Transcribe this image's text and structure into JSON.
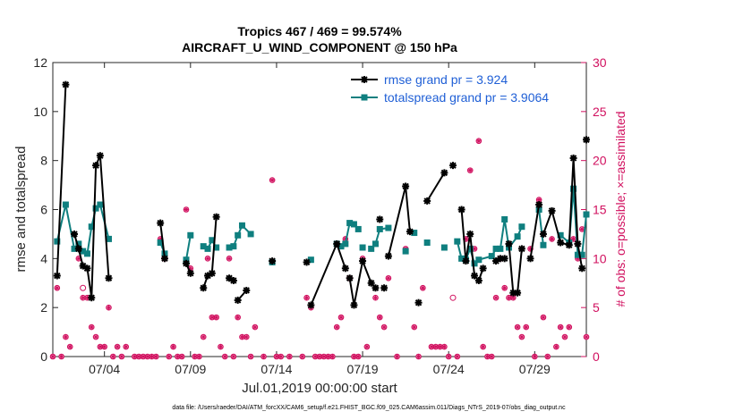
{
  "chart_data": {
    "type": "line",
    "title": "Tropics 467 / 469 = 99.574%",
    "subtitle": "AIRCRAFT_U_WIND_COMPONENT @ 150 hPa",
    "xlabel": "Jul.01,2019 00:00:00 start",
    "ylabel": "rmse and totalspread",
    "y2label": "# of obs: o=possible; ×=assimilated",
    "footer": "data file: /Users/raeder/DAI/ATM_forcXX/CAM6_setup/f.e21.FHIST_BGC.f09_025.CAM6assim.011/Diags_NTrS_2019-07/obs_diag_output.nc",
    "xlim": [
      0,
      31
    ],
    "ylim": [
      0,
      12
    ],
    "y2lim": [
      0,
      30
    ],
    "xticks": [
      3,
      8,
      13,
      18,
      23,
      28
    ],
    "xtick_labels": [
      "07/04",
      "07/09",
      "07/14",
      "07/19",
      "07/24",
      "07/29"
    ],
    "yticks": [
      0,
      2,
      4,
      6,
      8,
      10,
      12
    ],
    "ytick_labels": [
      "0",
      "2",
      "4",
      "6",
      "8",
      "10",
      "12"
    ],
    "y2ticks": [
      0,
      5,
      10,
      15,
      20,
      25,
      30
    ],
    "y2tick_labels": [
      "0",
      "5",
      "10",
      "15",
      "20",
      "25",
      "30"
    ],
    "legend_position": "top-right",
    "colors": {
      "rmse": "#000000",
      "spread": "#0f7f7f",
      "obs": "#d1105f",
      "legend_text": "#1f5fd6"
    },
    "series": [
      {
        "name": "rmse",
        "legend": "rmse grand pr = 3.924",
        "points": [
          [
            0.25,
            3.3
          ],
          [
            0.75,
            11.1
          ],
          [
            1.25,
            5.0
          ],
          [
            1.5,
            4.4
          ],
          [
            1.75,
            3.7
          ],
          [
            2.0,
            3.6
          ],
          [
            2.25,
            2.4
          ],
          [
            2.5,
            7.8
          ],
          [
            2.75,
            8.2
          ],
          [
            3.25,
            3.2
          ],
          [
            6.25,
            5.45
          ],
          [
            6.5,
            4.0
          ],
          [
            7.75,
            3.8
          ],
          [
            8.0,
            3.4
          ],
          [
            8.75,
            2.8
          ],
          [
            9.0,
            3.3
          ],
          [
            9.25,
            3.4
          ],
          [
            9.5,
            5.7
          ],
          [
            10.25,
            3.2
          ],
          [
            10.5,
            3.1
          ],
          [
            10.75,
            2.3
          ],
          [
            11.25,
            2.7
          ],
          [
            12.75,
            3.9
          ],
          [
            14.75,
            3.85
          ],
          [
            15.0,
            2.1
          ],
          [
            16.5,
            4.6
          ],
          [
            17.0,
            3.6
          ],
          [
            17.25,
            3.2
          ],
          [
            17.5,
            2.1
          ],
          [
            18.0,
            3.9
          ],
          [
            18.5,
            3.0
          ],
          [
            18.75,
            2.8
          ],
          [
            19.0,
            5.6
          ],
          [
            19.25,
            2.8
          ],
          [
            19.5,
            4.1
          ],
          [
            20.5,
            6.95
          ],
          [
            20.75,
            5.1
          ],
          [
            21.25,
            2.2
          ],
          [
            21.75,
            6.35
          ],
          [
            22.75,
            7.5
          ],
          [
            23.25,
            7.8
          ],
          [
            23.75,
            6.0
          ],
          [
            24.0,
            3.9
          ],
          [
            24.25,
            5.0
          ],
          [
            24.5,
            3.3
          ],
          [
            24.75,
            3.1
          ],
          [
            25.0,
            3.6
          ],
          [
            25.75,
            3.9
          ],
          [
            26.0,
            4.0
          ],
          [
            26.25,
            4.0
          ],
          [
            26.5,
            4.6
          ],
          [
            26.75,
            2.6
          ],
          [
            27.0,
            2.6
          ],
          [
            27.25,
            4.4
          ],
          [
            27.75,
            4.0
          ],
          [
            28.25,
            6.2
          ],
          [
            28.5,
            5.0
          ],
          [
            29.0,
            5.95
          ],
          [
            29.5,
            4.65
          ],
          [
            30.0,
            4.55
          ],
          [
            30.25,
            8.1
          ],
          [
            30.5,
            4.6
          ],
          [
            30.75,
            3.6
          ],
          [
            31.0,
            8.85
          ]
        ],
        "segments": [
          [
            0,
            1
          ],
          [
            2,
            9
          ],
          [
            10,
            11
          ],
          [
            12,
            13
          ],
          [
            14,
            17
          ],
          [
            18,
            19
          ],
          [
            20,
            21
          ],
          [
            24,
            26
          ],
          [
            27,
            31
          ],
          [
            34,
            36
          ],
          [
            38,
            39
          ],
          [
            41,
            46
          ],
          [
            50,
            53
          ],
          [
            54,
            55
          ],
          [
            56,
            62
          ]
        ]
      },
      {
        "name": "totalspread",
        "legend": "totalspread grand pr = 3.9064",
        "points": [
          [
            0.25,
            4.7
          ],
          [
            0.75,
            6.2
          ],
          [
            1.25,
            4.4
          ],
          [
            1.5,
            4.6
          ],
          [
            1.75,
            4.3
          ],
          [
            2.0,
            4.2
          ],
          [
            2.25,
            5.3
          ],
          [
            2.5,
            6.05
          ],
          [
            2.75,
            6.2
          ],
          [
            3.25,
            4.8
          ],
          [
            6.25,
            4.65
          ],
          [
            6.5,
            4.2
          ],
          [
            7.75,
            3.95
          ],
          [
            8.0,
            4.95
          ],
          [
            8.75,
            4.5
          ],
          [
            9.0,
            4.4
          ],
          [
            9.25,
            4.75
          ],
          [
            9.5,
            4.45
          ],
          [
            10.25,
            4.45
          ],
          [
            10.5,
            4.5
          ],
          [
            10.75,
            4.95
          ],
          [
            11.0,
            5.35
          ],
          [
            11.5,
            5.0
          ],
          [
            12.75,
            3.85
          ],
          [
            15.0,
            3.95
          ],
          [
            16.5,
            4.6
          ],
          [
            16.75,
            4.5
          ],
          [
            17.0,
            4.6
          ],
          [
            17.25,
            5.45
          ],
          [
            17.5,
            5.4
          ],
          [
            17.75,
            5.2
          ],
          [
            18.0,
            4.45
          ],
          [
            18.5,
            4.4
          ],
          [
            18.75,
            4.6
          ],
          [
            19.0,
            5.2
          ],
          [
            19.5,
            5.25
          ],
          [
            20.5,
            4.3
          ],
          [
            21.0,
            5.05
          ],
          [
            21.75,
            4.65
          ],
          [
            22.75,
            4.45
          ],
          [
            23.5,
            4.7
          ],
          [
            23.75,
            4.0
          ],
          [
            24.0,
            3.95
          ],
          [
            24.25,
            4.4
          ],
          [
            24.5,
            3.8
          ],
          [
            24.75,
            3.95
          ],
          [
            25.5,
            4.1
          ],
          [
            25.75,
            4.4
          ],
          [
            26.0,
            4.4
          ],
          [
            26.25,
            5.6
          ],
          [
            26.5,
            4.45
          ],
          [
            27.0,
            4.9
          ],
          [
            27.25,
            5.3
          ],
          [
            28.25,
            6.0
          ],
          [
            28.5,
            4.55
          ],
          [
            29.5,
            4.95
          ],
          [
            30.0,
            4.65
          ],
          [
            30.25,
            6.85
          ],
          [
            30.5,
            4.15
          ],
          [
            30.75,
            4.15
          ],
          [
            31.0,
            5.8
          ]
        ],
        "segments": [
          [
            0,
            9
          ],
          [
            10,
            11
          ],
          [
            12,
            13
          ],
          [
            14,
            17
          ],
          [
            18,
            22
          ],
          [
            25,
            30
          ],
          [
            33,
            35
          ],
          [
            40,
            52
          ],
          [
            53,
            54
          ],
          [
            55,
            60
          ]
        ]
      },
      {
        "name": "obs_assimilated",
        "axis": "right",
        "points": [
          [
            0.0,
            0
          ],
          [
            0.25,
            7
          ],
          [
            0.5,
            0
          ],
          [
            0.75,
            2
          ],
          [
            1.0,
            1
          ],
          [
            1.25,
            11
          ],
          [
            1.5,
            10
          ],
          [
            1.75,
            6
          ],
          [
            2.0,
            6
          ],
          [
            2.25,
            3
          ],
          [
            2.5,
            2
          ],
          [
            2.75,
            1
          ],
          [
            3.0,
            1
          ],
          [
            3.25,
            5
          ],
          [
            3.5,
            0
          ],
          [
            3.75,
            1
          ],
          [
            4.0,
            0
          ],
          [
            4.25,
            1
          ],
          [
            4.75,
            0
          ],
          [
            5.0,
            0
          ],
          [
            5.25,
            0
          ],
          [
            5.5,
            0
          ],
          [
            5.75,
            0
          ],
          [
            6.0,
            0
          ],
          [
            6.25,
            12
          ],
          [
            6.5,
            10
          ],
          [
            6.75,
            0
          ],
          [
            7.0,
            1
          ],
          [
            7.25,
            0
          ],
          [
            7.5,
            0
          ],
          [
            7.75,
            15
          ],
          [
            8.0,
            9
          ],
          [
            8.25,
            0
          ],
          [
            8.5,
            0
          ],
          [
            8.75,
            2
          ],
          [
            9.0,
            10
          ],
          [
            9.25,
            4
          ],
          [
            9.5,
            4
          ],
          [
            9.75,
            1
          ],
          [
            10.0,
            0
          ],
          [
            10.25,
            10
          ],
          [
            10.5,
            0
          ],
          [
            10.75,
            4
          ],
          [
            11.0,
            2
          ],
          [
            11.25,
            2
          ],
          [
            11.5,
            0
          ],
          [
            11.75,
            3
          ],
          [
            12.25,
            0
          ],
          [
            12.75,
            18
          ],
          [
            13.0,
            0
          ],
          [
            13.25,
            0
          ],
          [
            13.75,
            0
          ],
          [
            14.5,
            0
          ],
          [
            14.75,
            6
          ],
          [
            15.0,
            5
          ],
          [
            15.25,
            0
          ],
          [
            15.5,
            0
          ],
          [
            15.75,
            0
          ],
          [
            16.0,
            0
          ],
          [
            16.25,
            0
          ],
          [
            16.5,
            3
          ],
          [
            16.75,
            4
          ],
          [
            17.0,
            12
          ],
          [
            17.25,
            8
          ],
          [
            17.5,
            0
          ],
          [
            17.75,
            0
          ],
          [
            18.0,
            10
          ],
          [
            18.25,
            1
          ],
          [
            18.5,
            11
          ],
          [
            18.75,
            6
          ],
          [
            19.0,
            4
          ],
          [
            19.25,
            3
          ],
          [
            19.5,
            8
          ],
          [
            20.0,
            0
          ],
          [
            20.5,
            11
          ],
          [
            21.0,
            3
          ],
          [
            21.25,
            0
          ],
          [
            21.5,
            7
          ],
          [
            22.0,
            1
          ],
          [
            22.25,
            1
          ],
          [
            22.5,
            1
          ],
          [
            22.75,
            1
          ],
          [
            23.0,
            0
          ],
          [
            23.5,
            0
          ],
          [
            23.75,
            10
          ],
          [
            24.0,
            12
          ],
          [
            24.25,
            19
          ],
          [
            24.5,
            11
          ],
          [
            24.75,
            22
          ],
          [
            25.0,
            1
          ],
          [
            25.25,
            0
          ],
          [
            25.5,
            0
          ],
          [
            25.75,
            6
          ],
          [
            26.0,
            10
          ],
          [
            26.25,
            7
          ],
          [
            26.5,
            6
          ],
          [
            26.75,
            6
          ],
          [
            27.0,
            3
          ],
          [
            27.25,
            2
          ],
          [
            27.5,
            3
          ],
          [
            27.75,
            11
          ],
          [
            28.0,
            0
          ],
          [
            28.25,
            16
          ],
          [
            28.5,
            4
          ],
          [
            28.75,
            0
          ],
          [
            29.0,
            12
          ],
          [
            29.25,
            1
          ],
          [
            29.5,
            3
          ],
          [
            29.75,
            2
          ],
          [
            30.0,
            3
          ],
          [
            30.25,
            12
          ],
          [
            30.5,
            10
          ],
          [
            30.75,
            13
          ],
          [
            31.0,
            2
          ]
        ]
      },
      {
        "name": "obs_possible",
        "axis": "right",
        "points": [
          [
            23.25,
            6
          ],
          [
            1.75,
            7
          ]
        ]
      }
    ]
  }
}
